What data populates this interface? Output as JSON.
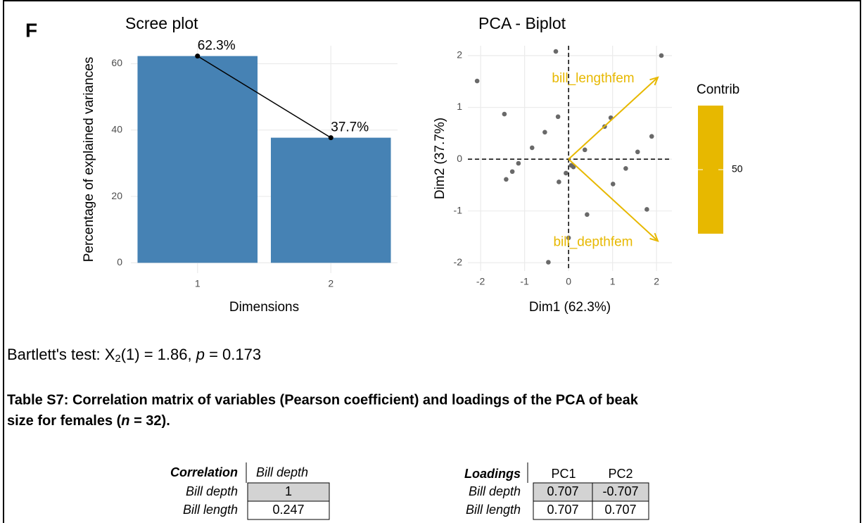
{
  "panel_label": "F",
  "chart_data": [
    {
      "type": "bar",
      "title": "Scree plot",
      "x_label": "Dimensions",
      "y_label": "Percentage of explained variances",
      "categories": [
        "1",
        "2"
      ],
      "values": [
        62.3,
        37.7
      ],
      "value_labels": [
        "62.3%",
        "37.7%"
      ],
      "color": "#4682B4",
      "line_color": "#000000",
      "ylim": [
        -3.1,
        65.4
      ],
      "yticks": [
        0,
        20,
        40,
        60
      ],
      "grid": true
    },
    {
      "type": "scatter",
      "title": "PCA - Biplot",
      "x_label": "Dim1 (62.3%)",
      "y_label": "Dim2 (37.7%)",
      "x": [
        -2.08,
        -1.46,
        -0.29,
        2.11,
        -0.24,
        -0.54,
        -0.83,
        0.96,
        0.82,
        0.37,
        1.89,
        1.57,
        -1.14,
        -1.28,
        -1.42,
        -0.06,
        0.11,
        0.06,
        -0.22,
        1.3,
        1.01,
        0.42,
        1.78,
        0,
        -0.46
      ],
      "y": [
        1.51,
        0.87,
        2.08,
        2.0,
        0.82,
        0.52,
        0.22,
        0.8,
        0.63,
        0.18,
        0.44,
        0.14,
        -0.08,
        -0.24,
        -0.39,
        -0.27,
        -0.15,
        -0.12,
        -0.44,
        -0.18,
        -0.48,
        -1.07,
        -0.97,
        -1.52,
        -1.99
      ],
      "color": "#696969",
      "xlim": [
        -2.29,
        2.35
      ],
      "ylim": [
        -2.16,
        2.19
      ],
      "xticks": [
        -2,
        -1,
        0,
        1,
        2
      ],
      "yticks": [
        -2,
        -1,
        0,
        1,
        2
      ],
      "grid": true,
      "arrows": [
        {
          "name": "bill_lengthfem",
          "x": 2.03,
          "y": 1.58
        },
        {
          "name": "bill_depthfem",
          "x": 2.03,
          "y": -1.58
        }
      ],
      "arrow_color": "#E7B800",
      "legend": {
        "title": "Contrib",
        "ticks": [
          50
        ]
      }
    }
  ],
  "bartlett": [
    "Bartlett's test: X",
    "2",
    "(1) = 1.86, ",
    "p",
    " = 0.173"
  ],
  "caption": {
    "line1": "Table S7: Correlation matrix of variables (Pearson coefficient) and loadings of the PCA of beak",
    "line2": [
      "size for females (",
      "n",
      " = 32)."
    ]
  },
  "correlation_table": {
    "header": [
      "Correlation",
      "Bill depth"
    ],
    "rows": [
      [
        "Bill depth",
        1
      ],
      [
        "Bill length",
        0.247
      ]
    ]
  },
  "loadings_table": {
    "header": [
      "Loadings",
      "PC1",
      "PC2"
    ],
    "rows": [
      [
        "Bill depth",
        0.707,
        -0.707
      ],
      [
        "Bill length",
        0.707,
        0.707
      ]
    ]
  }
}
